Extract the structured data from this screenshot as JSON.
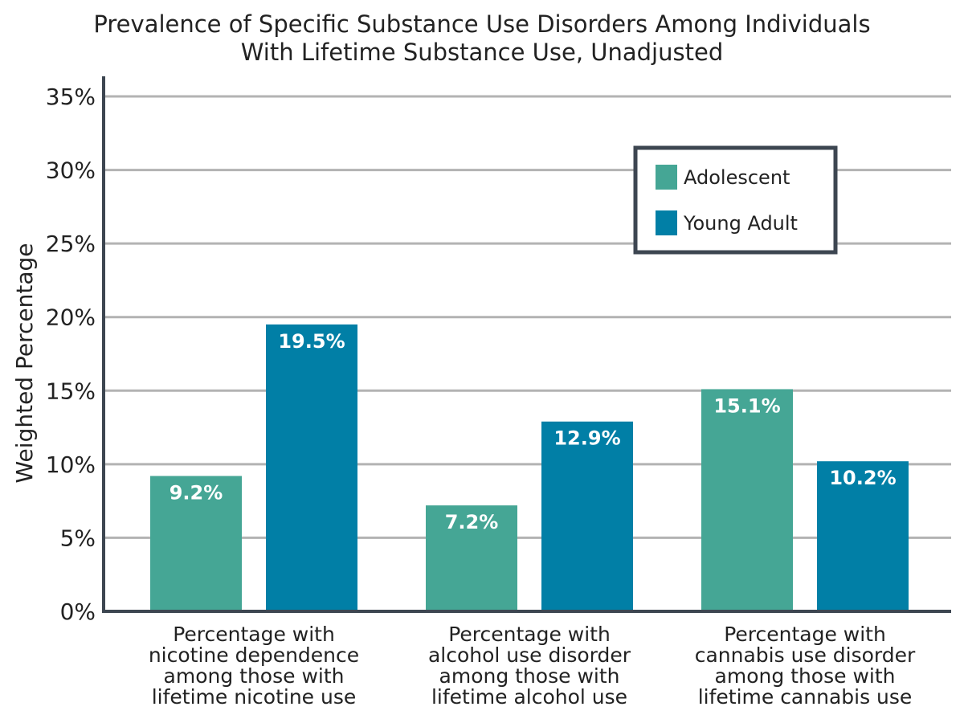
{
  "chart_data": {
    "type": "bar",
    "title": "Prevalence of Specific Substance Use Disorders Among Individuals With Lifetime Substance Use, Unadjusted",
    "title_lines": [
      "Prevalence of Specific Substance Use Disorders Among Individuals",
      "With Lifetime Substance Use, Unadjusted"
    ],
    "xlabel": "",
    "ylabel": "Weighted Percentage",
    "ylim": [
      0,
      35
    ],
    "yticks": [
      0,
      5,
      10,
      15,
      20,
      25,
      30,
      35
    ],
    "ytick_labels": [
      "0%",
      "5%",
      "10%",
      "15%",
      "20%",
      "25%",
      "30%",
      "35%"
    ],
    "grid": true,
    "legend_position": "top-right",
    "categories": [
      "Percentage with nicotine dependence among those with lifetime nicotine use",
      "Percentage with alcohol use disorder among those with lifetime alcohol use",
      "Percentage with cannabis use disorder among those with lifetime cannabis use"
    ],
    "category_lines": [
      [
        "Percentage with",
        "nicotine dependence",
        "among those with",
        "lifetime nicotine use"
      ],
      [
        "Percentage with",
        "alcohol use disorder",
        "among those with",
        "lifetime alcohol use"
      ],
      [
        "Percentage with",
        "cannabis use disorder",
        "among those with",
        "lifetime cannabis use"
      ]
    ],
    "series": [
      {
        "name": "Adolescent",
        "color": "#45a695",
        "values": [
          9.2,
          7.2,
          15.1
        ],
        "labels": [
          "9.2%",
          "7.2%",
          "15.1%"
        ]
      },
      {
        "name": "Young Adult",
        "color": "#017fa6",
        "values": [
          19.5,
          12.9,
          10.2
        ],
        "labels": [
          "19.5%",
          "12.9%",
          "10.2%"
        ]
      }
    ],
    "gridline_color": "#b3b3b3",
    "axis_color": "#3d4651"
  }
}
